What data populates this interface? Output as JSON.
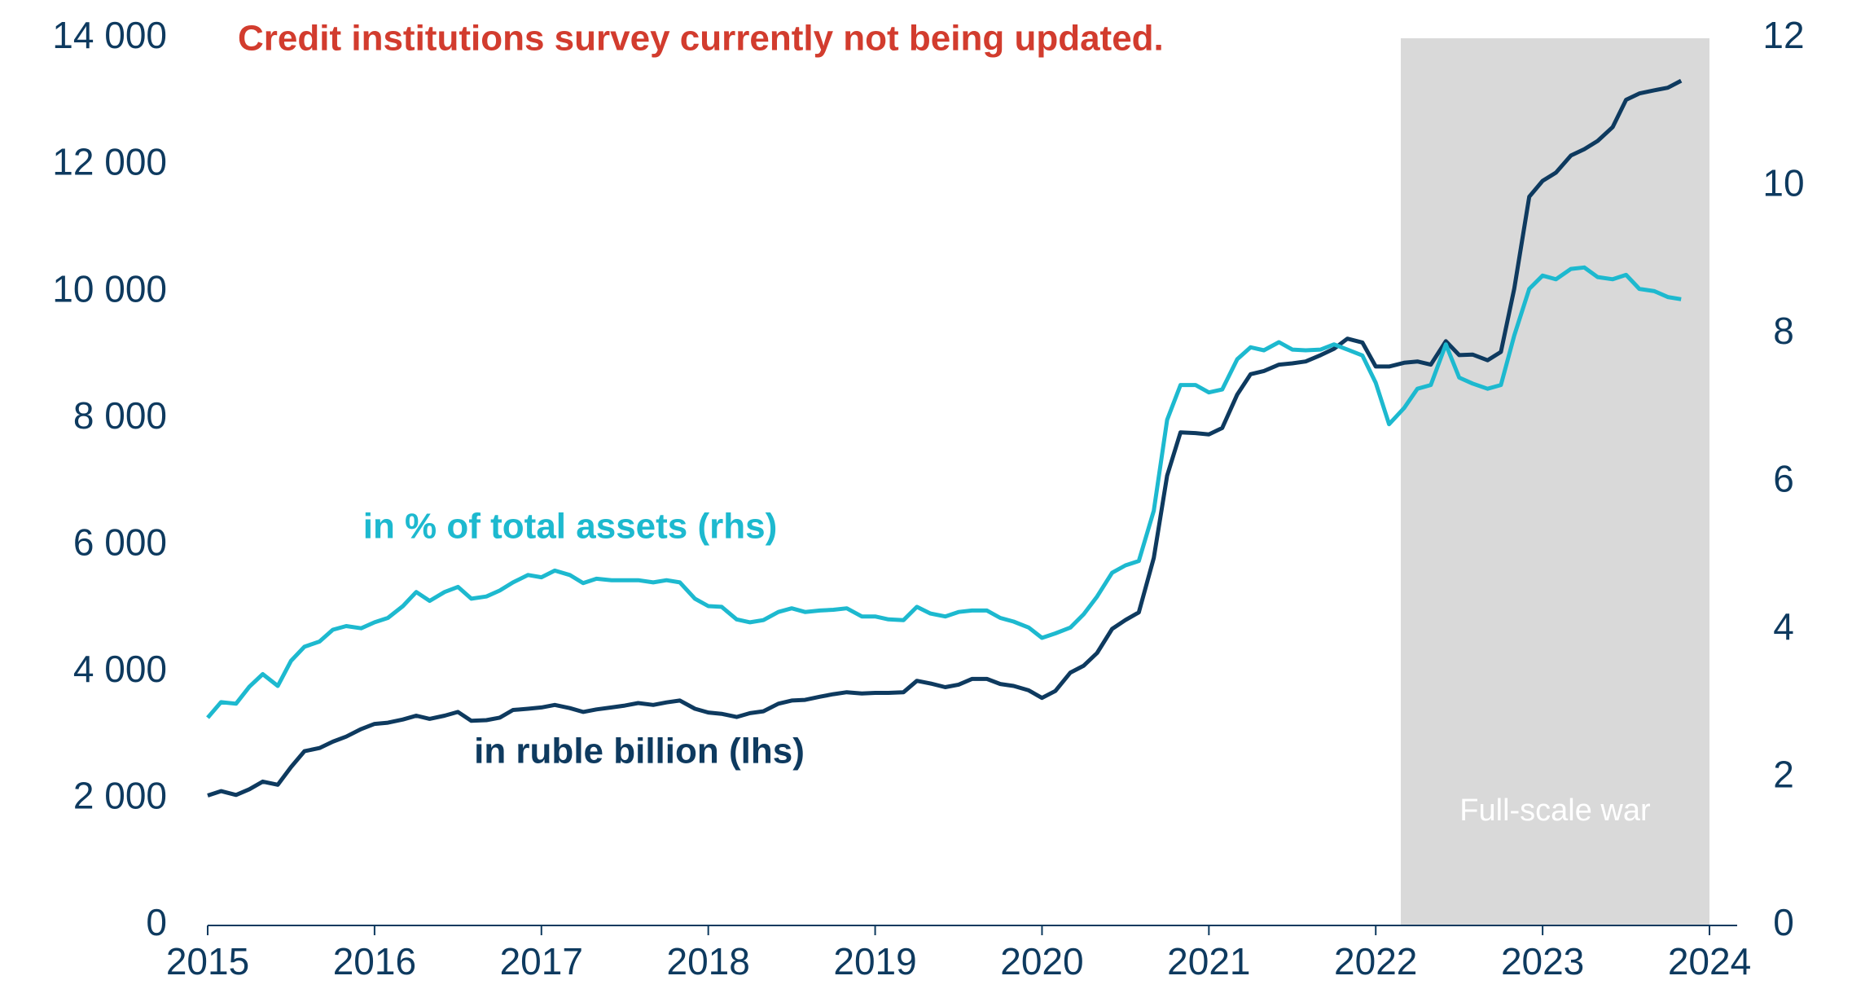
{
  "chart_data": {
    "type": "line",
    "title": "Credit institutions survey currently not being updated.",
    "xlim": [
      2015,
      2024
    ],
    "xticks": [
      2015,
      2016,
      2017,
      2018,
      2019,
      2020,
      2021,
      2022,
      2023,
      2024
    ],
    "ylim": [
      0,
      14000
    ],
    "yticks": [
      {
        "value": 0,
        "label": "0"
      },
      {
        "value": 2000,
        "label": "2 000"
      },
      {
        "value": 4000,
        "label": "4 000"
      },
      {
        "value": 6000,
        "label": "6 000"
      },
      {
        "value": 8000,
        "label": "8 000"
      },
      {
        "value": 10000,
        "label": "10 000"
      },
      {
        "value": 12000,
        "label": "12 000"
      },
      {
        "value": 14000,
        "label": "14 000"
      }
    ],
    "y2lim": [
      0,
      12
    ],
    "y2ticks": [
      0,
      2,
      4,
      6,
      8,
      10,
      12
    ],
    "shade": {
      "x": [
        2022.15,
        2024
      ],
      "label": "Full-scale war",
      "color": "#d9d9d9"
    },
    "x": [
      2015,
      2015.08,
      2015.17,
      2015.25,
      2015.33,
      2015.42,
      2015.5,
      2015.58,
      2015.67,
      2015.75,
      2015.83,
      2015.92,
      2016,
      2016.08,
      2016.17,
      2016.25,
      2016.33,
      2016.42,
      2016.5,
      2016.58,
      2016.67,
      2016.75,
      2016.83,
      2016.92,
      2017,
      2017.08,
      2017.17,
      2017.25,
      2017.33,
      2017.42,
      2017.5,
      2017.58,
      2017.67,
      2017.75,
      2017.83,
      2017.92,
      2018,
      2018.08,
      2018.17,
      2018.25,
      2018.33,
      2018.42,
      2018.5,
      2018.58,
      2018.67,
      2018.75,
      2018.83,
      2018.92,
      2019,
      2019.08,
      2019.17,
      2019.25,
      2019.33,
      2019.42,
      2019.5,
      2019.58,
      2019.67,
      2019.75,
      2019.83,
      2019.92,
      2020,
      2020.08,
      2020.17,
      2020.25,
      2020.33,
      2020.42,
      2020.5,
      2020.58,
      2020.67,
      2020.75,
      2020.83,
      2020.92,
      2021,
      2021.08,
      2021.17,
      2021.25,
      2021.33,
      2021.42,
      2021.5,
      2021.58,
      2021.67,
      2021.75,
      2021.83,
      2021.92,
      2022,
      2022.08,
      2022.17,
      2022.25,
      2022.33,
      2022.42,
      2022.5,
      2022.58,
      2022.67,
      2022.75,
      2022.83,
      2022.92,
      2023,
      2023.08,
      2023.17,
      2023.25,
      2023.33,
      2023.42,
      2023.5,
      2023.58,
      2023.67,
      2023.75,
      2023.83
    ],
    "series": [
      {
        "name": "in ruble billion (lhs)",
        "color": "#0e3a5f",
        "values": [
          2050,
          2120,
          2060,
          2150,
          2270,
          2220,
          2500,
          2750,
          2800,
          2900,
          2980,
          3100,
          3180,
          3200,
          3250,
          3310,
          3260,
          3310,
          3370,
          3230,
          3240,
          3280,
          3400,
          3420,
          3440,
          3480,
          3430,
          3370,
          3410,
          3440,
          3470,
          3510,
          3480,
          3520,
          3550,
          3420,
          3360,
          3340,
          3290,
          3350,
          3380,
          3500,
          3550,
          3560,
          3610,
          3650,
          3680,
          3660,
          3670,
          3670,
          3680,
          3860,
          3820,
          3760,
          3800,
          3890,
          3890,
          3810,
          3780,
          3710,
          3590,
          3700,
          3990,
          4100,
          4300,
          4680,
          4820,
          4940,
          5800,
          7100,
          7780,
          7770,
          7750,
          7850,
          8380,
          8700,
          8750,
          8850,
          8870,
          8900,
          9000,
          9100,
          9260,
          9200,
          8820,
          8820,
          8880,
          8900,
          8850,
          9220,
          9000,
          9010,
          8920,
          9050,
          10050,
          11500,
          11750,
          11880,
          12150,
          12250,
          12380,
          12600,
          13030,
          13130,
          13180,
          13220,
          13330
        ]
      },
      {
        "name": "in % of total assets (rhs)",
        "color": "#1db9cf",
        "axis": "y2",
        "values": [
          2.81,
          3.02,
          3.0,
          3.23,
          3.4,
          3.24,
          3.58,
          3.77,
          3.84,
          4.0,
          4.05,
          4.02,
          4.1,
          4.16,
          4.32,
          4.51,
          4.39,
          4.51,
          4.58,
          4.42,
          4.45,
          4.53,
          4.64,
          4.74,
          4.71,
          4.8,
          4.74,
          4.63,
          4.69,
          4.67,
          4.67,
          4.67,
          4.64,
          4.67,
          4.64,
          4.42,
          4.32,
          4.31,
          4.14,
          4.1,
          4.13,
          4.24,
          4.29,
          4.24,
          4.26,
          4.27,
          4.29,
          4.18,
          4.18,
          4.14,
          4.13,
          4.31,
          4.22,
          4.18,
          4.24,
          4.26,
          4.26,
          4.16,
          4.11,
          4.03,
          3.89,
          3.95,
          4.03,
          4.21,
          4.45,
          4.77,
          4.87,
          4.93,
          5.61,
          6.84,
          7.31,
          7.31,
          7.21,
          7.25,
          7.66,
          7.82,
          7.78,
          7.89,
          7.79,
          7.78,
          7.79,
          7.86,
          7.79,
          7.71,
          7.34,
          6.78,
          7.0,
          7.26,
          7.31,
          7.86,
          7.41,
          7.33,
          7.26,
          7.31,
          7.98,
          8.61,
          8.79,
          8.74,
          8.88,
          8.9,
          8.77,
          8.74,
          8.8,
          8.61,
          8.58,
          8.5,
          8.47
        ]
      }
    ]
  }
}
